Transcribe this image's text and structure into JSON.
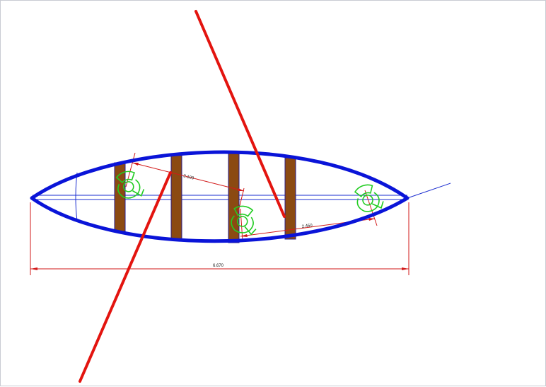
{
  "colors": {
    "hull": "#0a14d8",
    "centerline": "#1a2cd0",
    "dimension": "#d21a1a",
    "pointer": "#e3140f",
    "seat": "#8b4a12",
    "seat_outline": "#2a1f8f",
    "figure": "#22cc22",
    "border": "#c9cbd3"
  },
  "dimensions": {
    "overall_length": "6.670",
    "station_spacing_1": "2.100",
    "station_spacing_2": "2.450"
  },
  "icons": [
    "seat-icon",
    "paddler-top-view-icon"
  ]
}
